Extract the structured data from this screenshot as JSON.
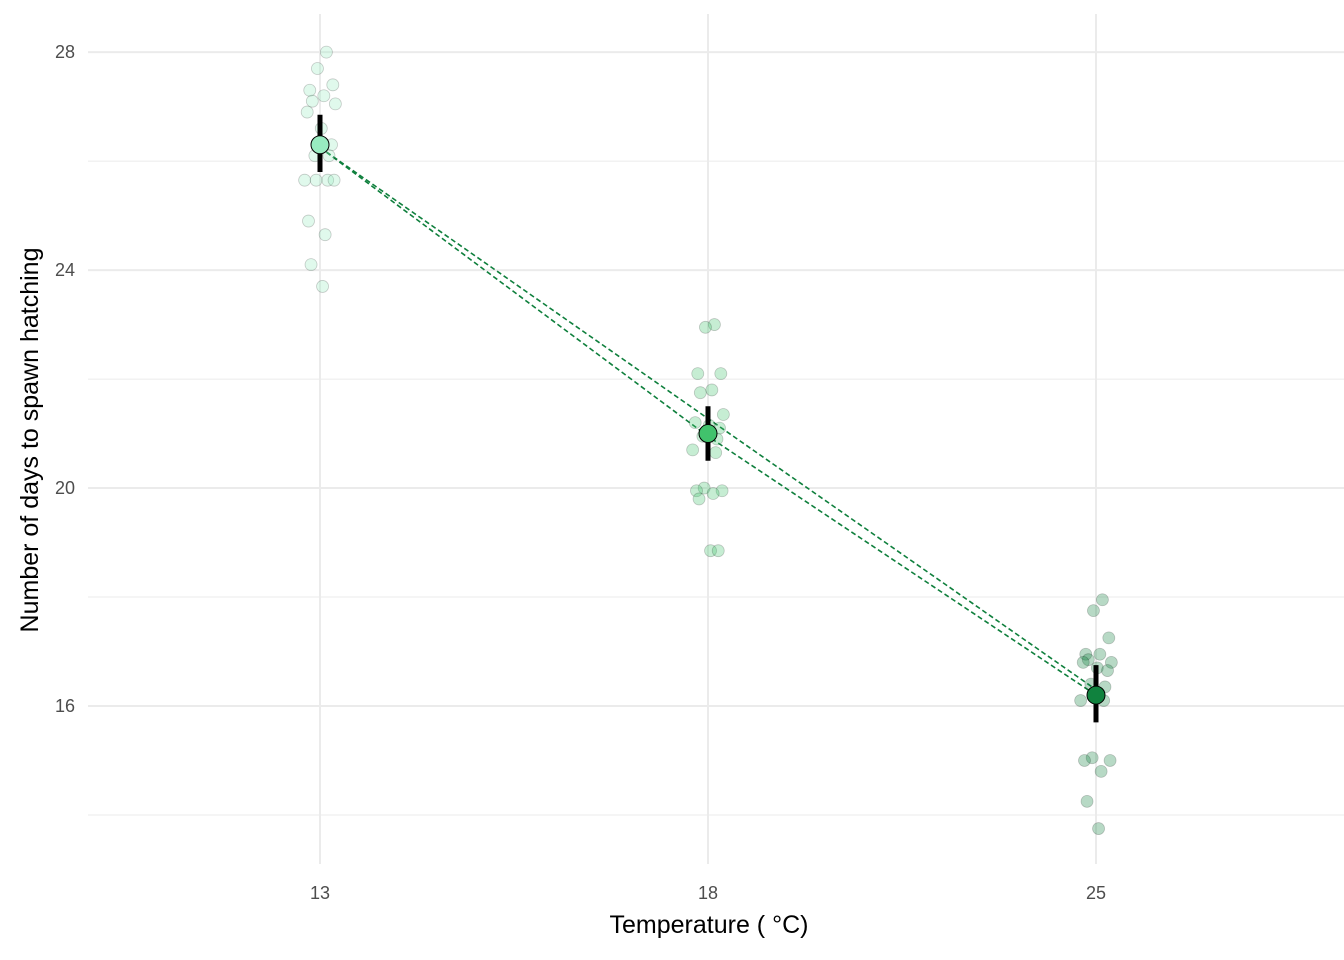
{
  "chart_data": {
    "type": "scatter",
    "xlabel": "Temperature ( °C)",
    "ylabel": "Number of days to spawn hatching",
    "categories": [
      "13",
      "18",
      "25"
    ],
    "ylim": [
      13.1,
      28.7
    ],
    "y_ticks": [
      16,
      20,
      24,
      28
    ],
    "grid": true,
    "colors": {
      "13": "#98ebc0",
      "18": "#41c26c",
      "25": "#10823e",
      "line": "#0e7f3c",
      "errorbar": "#000000",
      "grid": "#ebebeb"
    },
    "points": [
      {
        "category": "13",
        "values": [
          28.0,
          27.7,
          27.4,
          27.3,
          27.2,
          27.1,
          27.05,
          26.9,
          26.6,
          26.3,
          26.1,
          26.1,
          25.65,
          25.65,
          25.65,
          25.65,
          24.9,
          24.65,
          24.1,
          23.7
        ]
      },
      {
        "category": "18",
        "values": [
          23.0,
          22.95,
          22.1,
          22.1,
          21.8,
          21.75,
          21.35,
          21.2,
          21.15,
          21.1,
          20.95,
          20.9,
          20.7,
          20.65,
          20.0,
          19.95,
          19.95,
          19.9,
          19.8,
          18.85,
          18.85
        ]
      },
      {
        "category": "25",
        "values": [
          17.95,
          17.75,
          17.25,
          16.95,
          16.95,
          16.85,
          16.8,
          16.8,
          16.7,
          16.65,
          16.4,
          16.35,
          16.1,
          16.1,
          15.05,
          15.0,
          15.0,
          14.8,
          14.25,
          13.75
        ]
      }
    ],
    "summary": [
      {
        "category": "13",
        "mean": 26.3,
        "lower": 25.8,
        "upper": 26.85
      },
      {
        "category": "18",
        "mean": 21.0,
        "lower": 20.5,
        "upper": 21.5
      },
      {
        "category": "25",
        "mean": 16.2,
        "lower": 15.7,
        "upper": 16.75
      }
    ],
    "lines": [
      {
        "style": "dashed",
        "points": [
          [
            0,
            26.25
          ],
          [
            1,
            20.95
          ],
          [
            2,
            16.2
          ]
        ]
      },
      {
        "style": "dashed",
        "points": [
          [
            0,
            26.25
          ],
          [
            2,
            16.3
          ]
        ]
      }
    ]
  }
}
